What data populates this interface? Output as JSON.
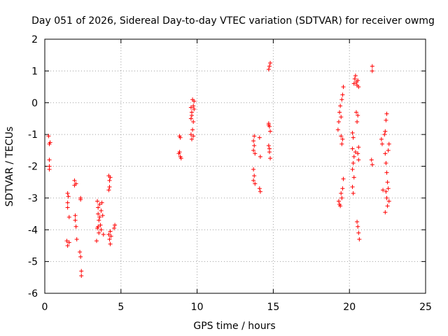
{
  "chart_data": {
    "type": "scatter",
    "title": "Day 051 of 2026, Sidereal Day-to-day VTEC variation (SDTVAR) for receiver owmg",
    "xlabel": "GPS time / hours",
    "ylabel": "SDTVAR / TECUs",
    "xlim": [
      0,
      25
    ],
    "ylim": [
      -6,
      2
    ],
    "xticks": [
      0,
      5,
      10,
      15,
      20,
      25
    ],
    "yticks": [
      -6,
      -5,
      -4,
      -3,
      -2,
      -1,
      0,
      1,
      2
    ],
    "xtick_labels": [
      "0",
      "5",
      "10",
      "15",
      "20",
      "25"
    ],
    "ytick_labels": [
      "-6",
      "-5",
      "-4",
      "-3",
      "-2",
      "-1",
      "0",
      "1",
      "2"
    ],
    "grid": true,
    "marker": "+",
    "color": "#ff0000",
    "series": [
      {
        "name": "SDTVAR",
        "points": [
          [
            0.25,
            -1.05
          ],
          [
            0.3,
            -1.3
          ],
          [
            0.3,
            -1.8
          ],
          [
            0.3,
            -2.0
          ],
          [
            0.35,
            -1.25
          ],
          [
            0.3,
            -2.1
          ],
          [
            1.5,
            -2.85
          ],
          [
            1.5,
            -3.15
          ],
          [
            1.5,
            -3.3
          ],
          [
            1.45,
            -4.35
          ],
          [
            1.5,
            -4.5
          ],
          [
            1.6,
            -4.4
          ],
          [
            1.55,
            -2.95
          ],
          [
            1.6,
            -3.6
          ],
          [
            1.95,
            -2.45
          ],
          [
            1.95,
            -2.6
          ],
          [
            2.0,
            -3.55
          ],
          [
            2.0,
            -3.7
          ],
          [
            2.05,
            -3.9
          ],
          [
            2.1,
            -4.3
          ],
          [
            2.05,
            -2.55
          ],
          [
            2.35,
            -3.05
          ],
          [
            2.3,
            -4.7
          ],
          [
            2.35,
            -4.85
          ],
          [
            2.4,
            -5.3
          ],
          [
            2.4,
            -5.45
          ],
          [
            2.35,
            -3.0
          ],
          [
            3.45,
            -3.1
          ],
          [
            3.5,
            -3.3
          ],
          [
            3.5,
            -3.5
          ],
          [
            3.55,
            -3.7
          ],
          [
            3.5,
            -3.9
          ],
          [
            3.55,
            -4.1
          ],
          [
            3.6,
            -3.2
          ],
          [
            3.6,
            -3.6
          ],
          [
            3.65,
            -3.85
          ],
          [
            3.7,
            -3.4
          ],
          [
            3.75,
            -3.15
          ],
          [
            3.8,
            -3.55
          ],
          [
            3.85,
            -4.15
          ],
          [
            3.4,
            -4.35
          ],
          [
            3.45,
            -3.95
          ],
          [
            3.7,
            -4.0
          ],
          [
            4.2,
            -2.3
          ],
          [
            4.25,
            -2.45
          ],
          [
            4.2,
            -2.75
          ],
          [
            4.25,
            -2.65
          ],
          [
            4.3,
            -2.35
          ],
          [
            4.3,
            -4.05
          ],
          [
            4.35,
            -4.2
          ],
          [
            4.25,
            -4.3
          ],
          [
            4.3,
            -4.45
          ],
          [
            4.2,
            -4.15
          ],
          [
            4.6,
            -3.85
          ],
          [
            4.55,
            -3.95
          ],
          [
            8.85,
            -1.05
          ],
          [
            8.9,
            -1.1
          ],
          [
            8.85,
            -1.55
          ],
          [
            8.9,
            -1.7
          ],
          [
            8.95,
            -1.75
          ],
          [
            8.8,
            -1.6
          ],
          [
            9.6,
            -1.0
          ],
          [
            9.65,
            -1.15
          ],
          [
            9.7,
            -0.85
          ],
          [
            9.6,
            -0.5
          ],
          [
            9.65,
            -0.3
          ],
          [
            9.75,
            -0.1
          ],
          [
            9.7,
            0.1
          ],
          [
            9.8,
            0.05
          ],
          [
            9.75,
            -0.6
          ],
          [
            9.8,
            -0.2
          ],
          [
            9.65,
            -0.4
          ],
          [
            9.75,
            -1.05
          ],
          [
            9.6,
            -0.15
          ],
          [
            13.7,
            -1.2
          ],
          [
            13.75,
            -1.35
          ],
          [
            13.7,
            -1.5
          ],
          [
            13.75,
            -1.05
          ],
          [
            13.8,
            -1.6
          ],
          [
            13.7,
            -2.1
          ],
          [
            13.75,
            -2.3
          ],
          [
            13.7,
            -2.45
          ],
          [
            13.8,
            -2.55
          ],
          [
            14.1,
            -1.1
          ],
          [
            14.15,
            -1.7
          ],
          [
            14.1,
            -2.7
          ],
          [
            14.15,
            -2.8
          ],
          [
            14.7,
            1.05
          ],
          [
            14.75,
            1.15
          ],
          [
            14.8,
            1.25
          ],
          [
            14.7,
            -0.65
          ],
          [
            14.75,
            -0.75
          ],
          [
            14.8,
            -0.9
          ],
          [
            14.7,
            -1.35
          ],
          [
            14.75,
            -1.55
          ],
          [
            14.8,
            -1.75
          ],
          [
            14.75,
            -1.45
          ],
          [
            14.7,
            -0.7
          ],
          [
            19.25,
            -0.85
          ],
          [
            19.3,
            -0.6
          ],
          [
            19.35,
            -0.3
          ],
          [
            19.4,
            -0.1
          ],
          [
            19.45,
            -0.45
          ],
          [
            19.5,
            0.1
          ],
          [
            19.55,
            0.25
          ],
          [
            19.6,
            0.5
          ],
          [
            19.45,
            -1.05
          ],
          [
            19.5,
            -1.3
          ],
          [
            19.55,
            -1.15
          ],
          [
            19.3,
            -3.1
          ],
          [
            19.35,
            -3.2
          ],
          [
            19.4,
            -3.25
          ],
          [
            19.5,
            -3.0
          ],
          [
            19.55,
            -2.7
          ],
          [
            19.6,
            -2.4
          ],
          [
            19.45,
            -2.85
          ],
          [
            20.2,
            -0.95
          ],
          [
            20.25,
            -1.1
          ],
          [
            20.2,
            -1.45
          ],
          [
            20.3,
            -1.7
          ],
          [
            20.25,
            -1.9
          ],
          [
            20.2,
            -2.1
          ],
          [
            20.3,
            -2.35
          ],
          [
            20.2,
            -2.65
          ],
          [
            20.25,
            -2.85
          ],
          [
            20.3,
            0.6
          ],
          [
            20.35,
            0.75
          ],
          [
            20.4,
            0.85
          ],
          [
            20.45,
            0.65
          ],
          [
            20.5,
            0.55
          ],
          [
            20.55,
            0.7
          ],
          [
            20.6,
            0.5
          ],
          [
            20.45,
            -0.3
          ],
          [
            20.5,
            -0.6
          ],
          [
            20.55,
            -0.4
          ],
          [
            20.6,
            -1.4
          ],
          [
            20.55,
            -1.6
          ],
          [
            20.6,
            -1.8
          ],
          [
            20.5,
            -3.75
          ],
          [
            20.55,
            -3.9
          ],
          [
            20.6,
            -4.1
          ],
          [
            20.65,
            -4.3
          ],
          [
            20.4,
            -1.55
          ],
          [
            21.5,
            1.0
          ],
          [
            21.5,
            1.15
          ],
          [
            21.45,
            -1.8
          ],
          [
            21.5,
            -1.95
          ],
          [
            22.1,
            -1.15
          ],
          [
            22.15,
            -1.3
          ],
          [
            22.2,
            -2.75
          ],
          [
            22.3,
            -1.0
          ],
          [
            22.35,
            -0.9
          ],
          [
            22.4,
            -0.55
          ],
          [
            22.45,
            -0.35
          ],
          [
            22.35,
            -1.6
          ],
          [
            22.4,
            -1.9
          ],
          [
            22.45,
            -2.2
          ],
          [
            22.5,
            -2.5
          ],
          [
            22.4,
            -2.8
          ],
          [
            22.45,
            -3.0
          ],
          [
            22.5,
            -3.25
          ],
          [
            22.35,
            -3.45
          ],
          [
            22.55,
            -2.7
          ],
          [
            22.6,
            -3.1
          ],
          [
            22.6,
            -1.3
          ],
          [
            22.55,
            -1.5
          ]
        ]
      }
    ]
  }
}
